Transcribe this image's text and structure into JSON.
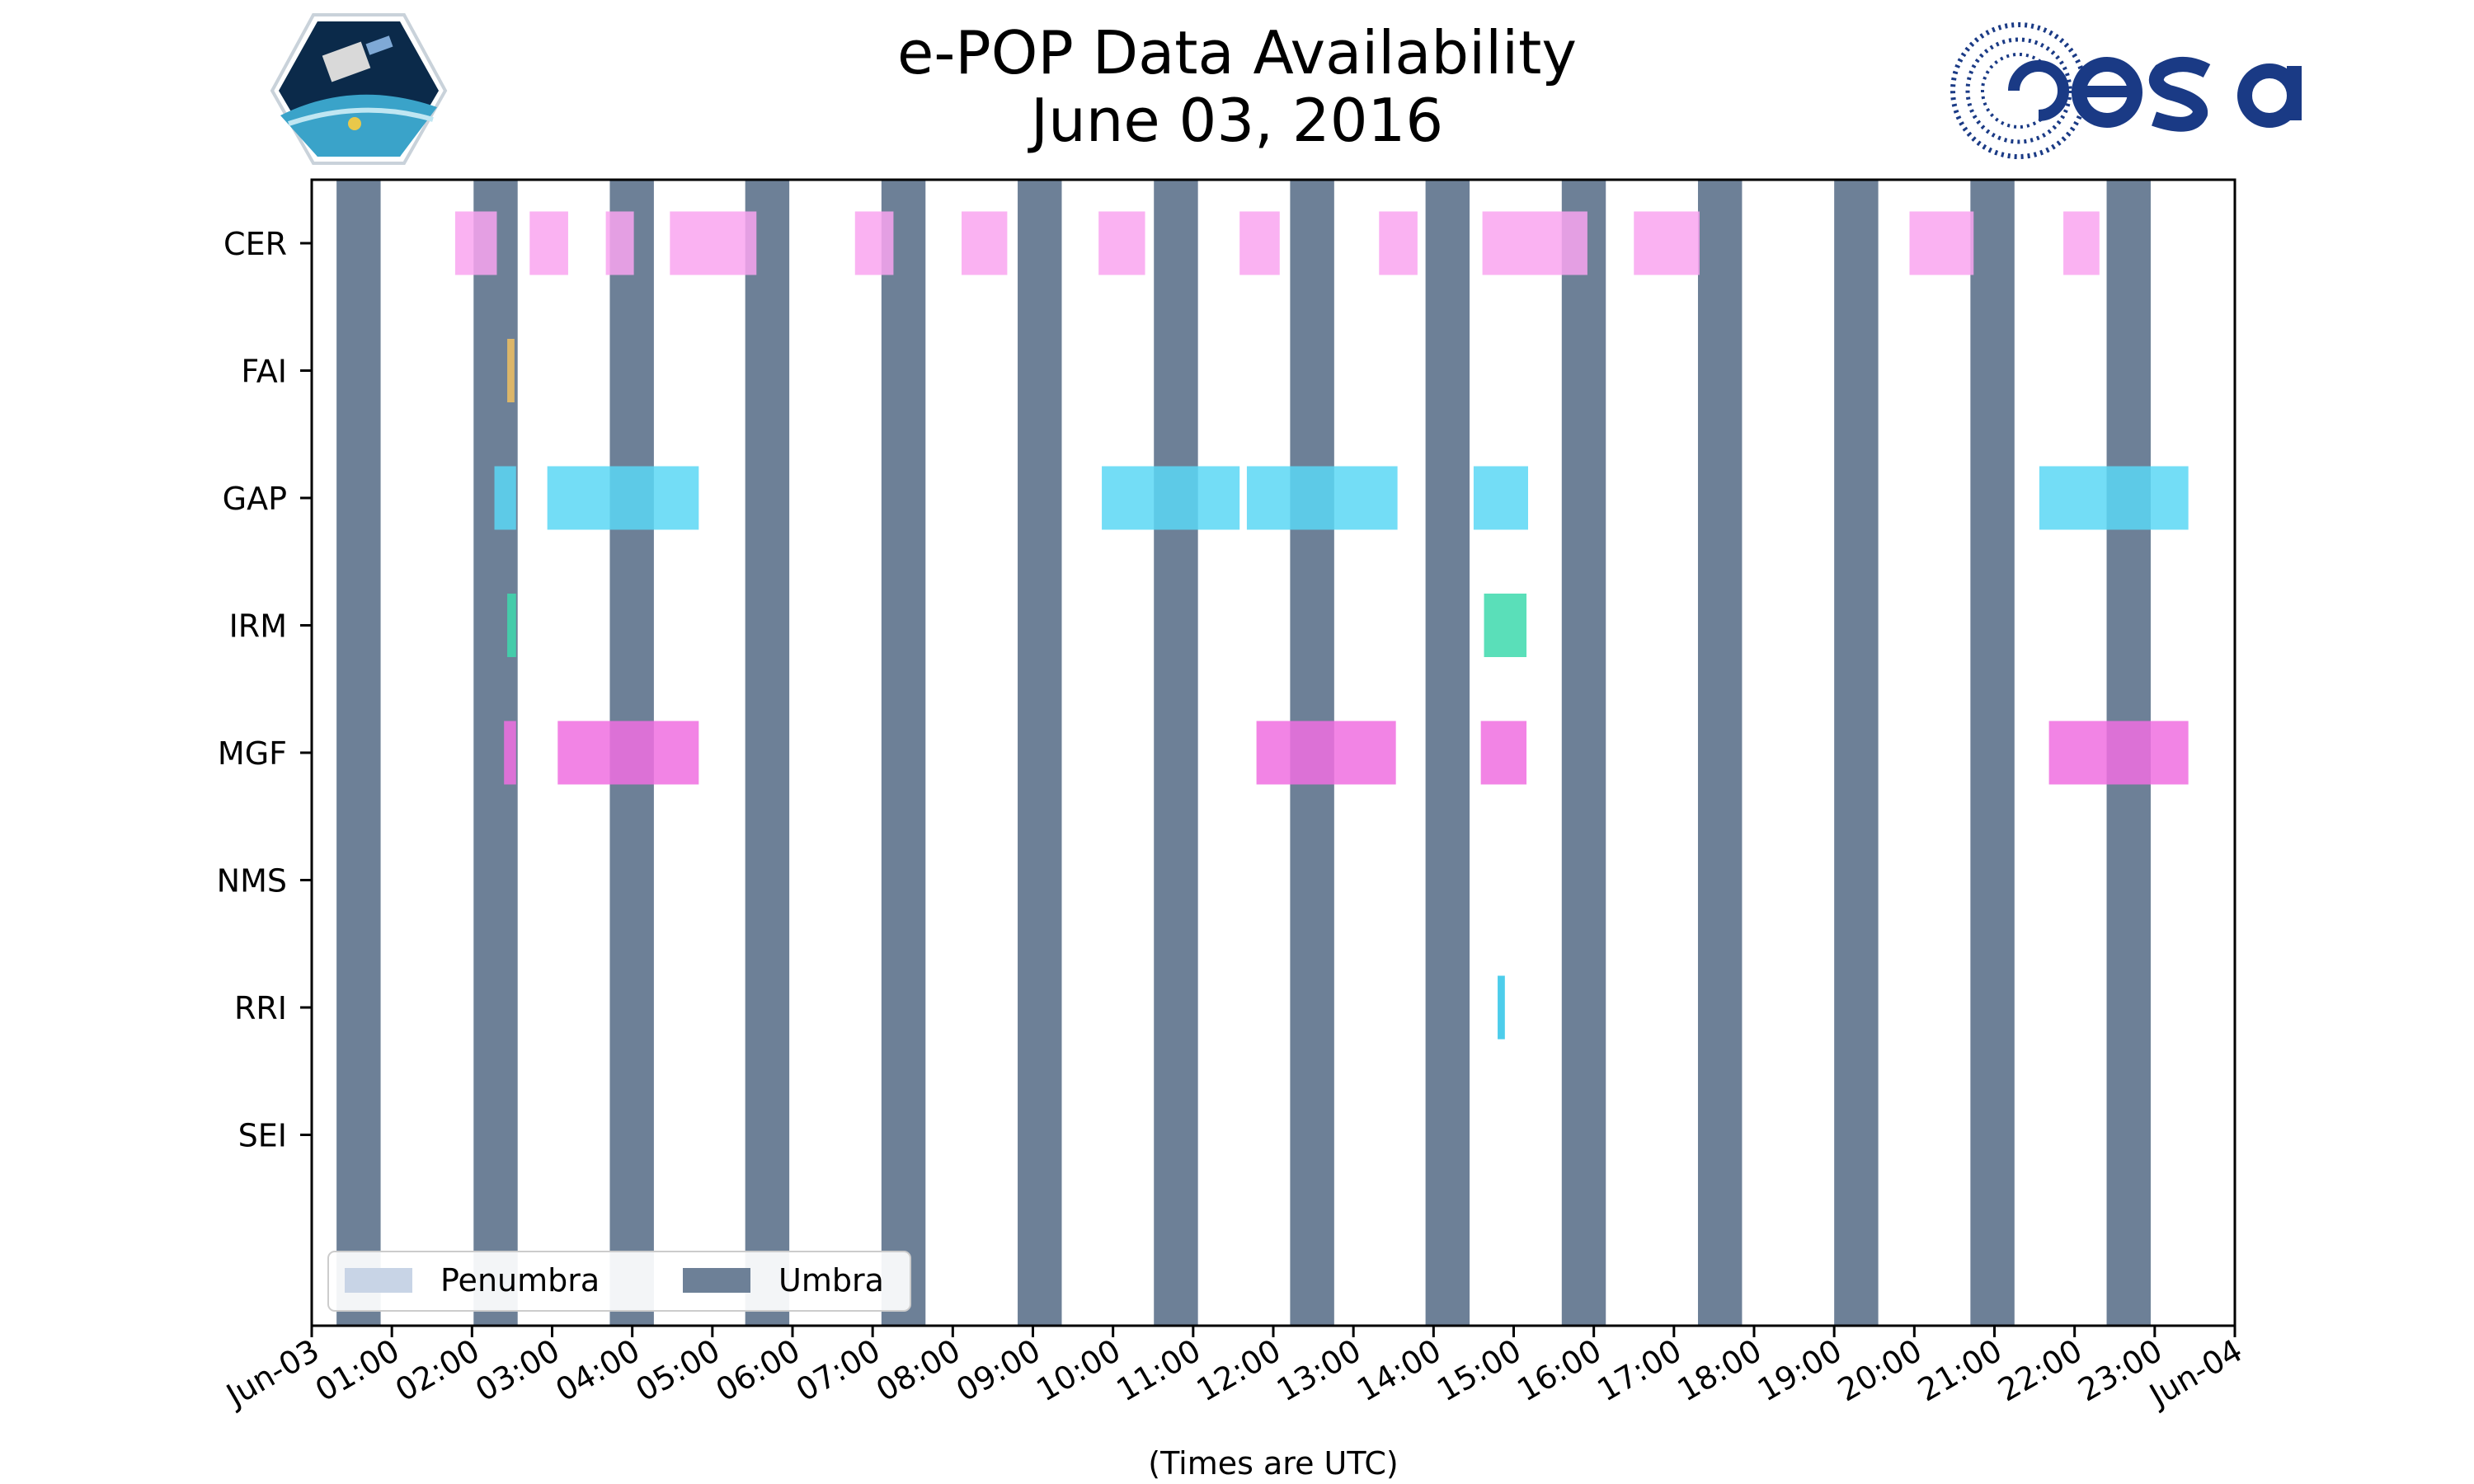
{
  "chart_data": {
    "type": "timeline",
    "title": "e-POP Data Availability",
    "subtitle": "June 03, 2016",
    "xlabel": "(Times are UTC)",
    "x_unit": "hours UTC",
    "xlim": [
      0,
      24
    ],
    "x_tick_labels": [
      "Jun-03",
      "01:00",
      "02:00",
      "03:00",
      "04:00",
      "05:00",
      "06:00",
      "07:00",
      "08:00",
      "09:00",
      "10:00",
      "11:00",
      "12:00",
      "13:00",
      "14:00",
      "15:00",
      "16:00",
      "17:00",
      "18:00",
      "19:00",
      "20:00",
      "21:00",
      "22:00",
      "23:00",
      "Jun-04"
    ],
    "instruments": [
      "CER",
      "FAI",
      "GAP",
      "IRM",
      "MGF",
      "NMS",
      "RRI",
      "SEI"
    ],
    "instrument_colors": {
      "CER": "#f9a5f0",
      "FAI": "#f0c060",
      "GAP": "#5ad7f5",
      "IRM": "#3dd9ad",
      "MGF": "#f06ee0",
      "NMS": "#888888",
      "RRI": "#2ec4e8",
      "SEI": "#888888"
    },
    "umbra_color": "#6d8097",
    "penumbra_color": "#c8d4e6",
    "legend": {
      "position": "lower-left",
      "entries": [
        {
          "label": "Penumbra",
          "color": "#c8d4e6"
        },
        {
          "label": "Umbra",
          "color": "#6d8097"
        }
      ]
    },
    "umbra": [
      [
        0.31,
        0.86
      ],
      [
        2.02,
        2.57
      ],
      [
        3.72,
        4.27
      ],
      [
        5.41,
        5.96
      ],
      [
        7.11,
        7.66
      ],
      [
        8.81,
        9.36
      ],
      [
        10.51,
        11.06
      ],
      [
        12.21,
        12.76
      ],
      [
        13.9,
        14.45
      ],
      [
        15.6,
        16.15
      ],
      [
        17.3,
        17.85
      ],
      [
        19.0,
        19.55
      ],
      [
        20.7,
        21.25
      ],
      [
        22.4,
        22.95
      ]
    ],
    "availability": {
      "CER": [
        [
          1.79,
          2.31
        ],
        [
          2.72,
          3.2
        ],
        [
          3.67,
          4.02
        ],
        [
          4.47,
          5.55
        ],
        [
          6.78,
          7.26
        ],
        [
          8.11,
          8.68
        ],
        [
          9.82,
          10.4
        ],
        [
          11.58,
          12.08
        ],
        [
          13.32,
          13.8
        ],
        [
          14.61,
          15.92
        ],
        [
          16.5,
          17.32
        ],
        [
          19.94,
          20.74
        ],
        [
          21.86,
          22.31
        ]
      ],
      "FAI": [
        [
          2.44,
          2.53
        ]
      ],
      "GAP": [
        [
          2.28,
          2.55
        ],
        [
          2.94,
          4.83
        ],
        [
          9.86,
          11.58
        ],
        [
          11.67,
          13.55
        ],
        [
          14.5,
          15.18
        ]
      ],
      "IRM": [
        [
          2.44,
          2.55
        ],
        [
          14.63,
          15.16
        ]
      ],
      "MGF": [
        [
          2.4,
          2.55
        ],
        [
          3.07,
          4.83
        ],
        [
          11.79,
          13.53
        ],
        [
          14.59,
          15.16
        ],
        [
          21.68,
          23.42
        ]
      ],
      "NMS": [],
      "RRI": [
        [
          14.8,
          14.89
        ]
      ],
      "SEI": []
    },
    "availability_extra": {
      "GAP": [
        [
          21.56,
          23.42
        ]
      ]
    }
  }
}
